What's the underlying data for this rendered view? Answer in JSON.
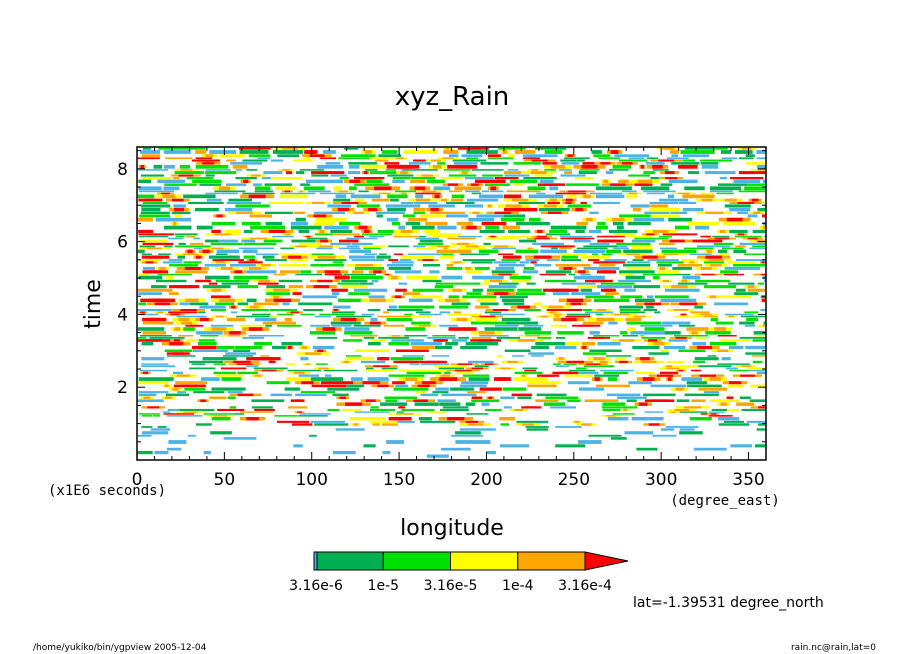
{
  "chart_data": {
    "type": "heatmap",
    "title": "xyz_Rain",
    "xlabel": "longitude",
    "xunit": "(degree_east)",
    "ylabel": "time",
    "yunit": "(x1E6 seconds)",
    "xlim": [
      0,
      360
    ],
    "ylim": [
      0,
      8.6
    ],
    "xticks": [
      0,
      50,
      100,
      150,
      200,
      250,
      300,
      350
    ],
    "yticks": [
      2,
      4,
      6,
      8
    ],
    "colorbar": {
      "levels": [
        "3.16e-6",
        "1e-5",
        "3.16e-5",
        "1e-4",
        "3.16e-4"
      ],
      "shown_labels": [
        "3.16e-6",
        "1e-5",
        "3.16e-5",
        "1e-4",
        "3.16e-4"
      ],
      "colors": [
        "#4db3e6",
        "#00b050",
        "#00e000",
        "#ffff00",
        "#ffa500",
        "#ff0000"
      ]
    },
    "annotation": "lat=-1.39531 degree_north",
    "footer_left": "/home/yukiko/bin/ygpview  2005-12-04",
    "footer_right": "rain.nc@rain,lat=0"
  }
}
